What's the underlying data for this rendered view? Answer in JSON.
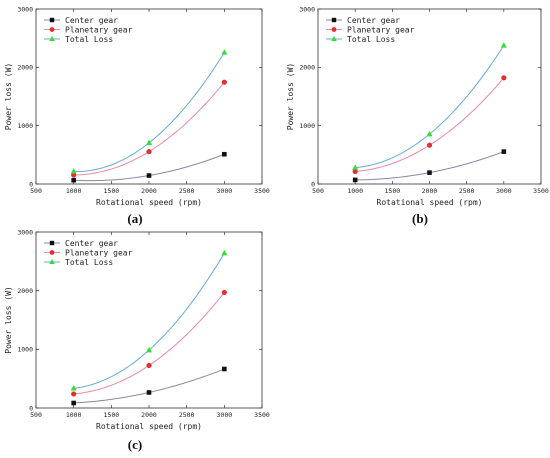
{
  "chart_data": [
    {
      "panel_label": "(a)",
      "type": "line",
      "xlabel": "Rotational speed (rpm)",
      "ylabel": "Power loss (W)",
      "xlim": [
        500,
        3500
      ],
      "ylim": [
        0,
        3000
      ],
      "xticks": [
        500,
        1000,
        1500,
        2000,
        2500,
        3000,
        3500
      ],
      "yticks": [
        0,
        1000,
        2000,
        3000
      ],
      "legend_position": "top-left",
      "x": [
        1000,
        2000,
        3000
      ],
      "series": [
        {
          "name": "Center gear",
          "values": [
            65,
            145,
            510
          ],
          "color": "#111111",
          "marker": "square"
        },
        {
          "name": "Planetary gear",
          "values": [
            155,
            555,
            1745
          ],
          "color": "#e03030",
          "marker": "circle"
        },
        {
          "name": "Total Loss",
          "values": [
            215,
            705,
            2255
          ],
          "color": "#33dd33",
          "marker": "triangle"
        }
      ]
    },
    {
      "panel_label": "(b)",
      "type": "line",
      "xlabel": "Rotational speed (rpm)",
      "ylabel": "Power loss (W)",
      "xlim": [
        500,
        3500
      ],
      "ylim": [
        0,
        3000
      ],
      "xticks": [
        500,
        1000,
        1500,
        2000,
        2500,
        3000,
        3500
      ],
      "yticks": [
        0,
        1000,
        2000,
        3000
      ],
      "legend_position": "top-left",
      "x": [
        1000,
        2000,
        3000
      ],
      "series": [
        {
          "name": "Center gear",
          "values": [
            70,
            195,
            555
          ],
          "color": "#111111",
          "marker": "square"
        },
        {
          "name": "Planetary gear",
          "values": [
            215,
            665,
            1820
          ],
          "color": "#e03030",
          "marker": "circle"
        },
        {
          "name": "Total Loss",
          "values": [
            280,
            855,
            2375
          ],
          "color": "#33dd33",
          "marker": "triangle"
        }
      ]
    },
    {
      "panel_label": "(c)",
      "type": "line",
      "xlabel": "Rotational speed (rpm)",
      "ylabel": "Power loss (W)",
      "xlim": [
        500,
        3500
      ],
      "ylim": [
        0,
        3000
      ],
      "xticks": [
        500,
        1000,
        1500,
        2000,
        2500,
        3000,
        3500
      ],
      "yticks": [
        0,
        1000,
        2000,
        3000
      ],
      "legend_position": "top-left",
      "x": [
        1000,
        2000,
        3000
      ],
      "series": [
        {
          "name": "Center gear",
          "values": [
            85,
            265,
            665
          ],
          "color": "#111111",
          "marker": "square"
        },
        {
          "name": "Planetary gear",
          "values": [
            240,
            725,
            1970
          ],
          "color": "#e03030",
          "marker": "circle"
        },
        {
          "name": "Total Loss",
          "values": [
            335,
            985,
            2640
          ],
          "color": "#33dd33",
          "marker": "triangle"
        }
      ]
    }
  ]
}
